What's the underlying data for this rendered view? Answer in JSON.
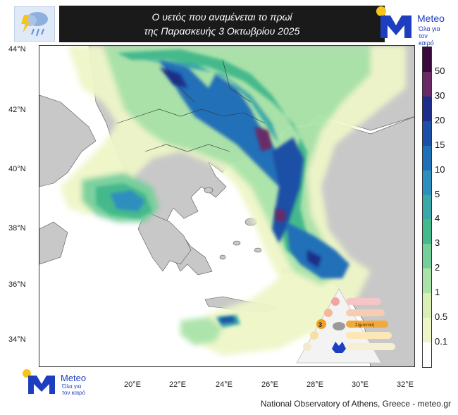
{
  "title": {
    "line1": "Ο υετός που αναμένεται το πρωί",
    "line2": "της Παρασκευής 3 Οκτωβρίου 2025"
  },
  "logo": {
    "name": "Meteo",
    "tagline_1": "Όλα για",
    "tagline_2": "τον καιρό",
    "brand_color": "#1d3fbf"
  },
  "map": {
    "lat_labels": [
      "44°N",
      "42°N",
      "40°N",
      "38°N",
      "36°N",
      "34°N"
    ],
    "lon_labels": [
      "20°E",
      "22°E",
      "24°E",
      "26°E",
      "28°E",
      "30°E",
      "32°E"
    ],
    "land_color": "#c8c8c8",
    "sea_color": "#ffffff"
  },
  "colorbar": {
    "labels": [
      "50",
      "30",
      "20",
      "15",
      "10",
      "5",
      "4",
      "3",
      "2",
      "1",
      "0.5",
      "0.1"
    ],
    "colors": [
      "#3b0a3d",
      "#6b2a66",
      "#1f2d8a",
      "#1c50a6",
      "#2070b8",
      "#2e8fbf",
      "#3aa7a9",
      "#45b98c",
      "#74cf9a",
      "#a9e3a8",
      "#d9efb4",
      "#eef6c8",
      "#ffffff"
    ]
  },
  "warning_scale": {
    "level": "3",
    "levels": [
      "1",
      "2",
      "3",
      "4",
      "5"
    ],
    "label_highlight": "Σημαντική"
  },
  "footer": "National Observatory of Athens, Greece - meteo.gr"
}
